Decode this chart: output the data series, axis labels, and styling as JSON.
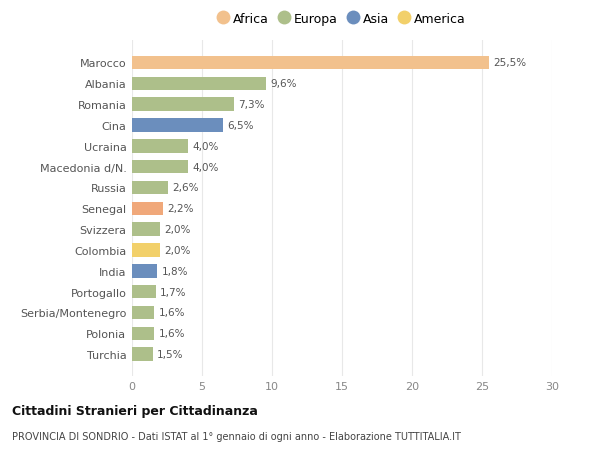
{
  "countries": [
    "Marocco",
    "Albania",
    "Romania",
    "Cina",
    "Ucraina",
    "Macedonia d/N.",
    "Russia",
    "Senegal",
    "Svizzera",
    "Colombia",
    "India",
    "Portogallo",
    "Serbia/Montenegro",
    "Polonia",
    "Turchia"
  ],
  "values": [
    25.5,
    9.6,
    7.3,
    6.5,
    4.0,
    4.0,
    2.6,
    2.2,
    2.0,
    2.0,
    1.8,
    1.7,
    1.6,
    1.6,
    1.5
  ],
  "labels": [
    "25,5%",
    "9,6%",
    "7,3%",
    "6,5%",
    "4,0%",
    "4,0%",
    "2,6%",
    "2,2%",
    "2,0%",
    "2,0%",
    "1,8%",
    "1,7%",
    "1,6%",
    "1,6%",
    "1,5%"
  ],
  "colors": [
    "#F2C18D",
    "#ADBF8A",
    "#ADBF8A",
    "#6B8EBD",
    "#ADBF8A",
    "#ADBF8A",
    "#ADBF8A",
    "#F0A87A",
    "#ADBF8A",
    "#F2D06A",
    "#6B8EBD",
    "#ADBF8A",
    "#ADBF8A",
    "#ADBF8A",
    "#ADBF8A"
  ],
  "legend": [
    {
      "label": "Africa",
      "color": "#F2C18D"
    },
    {
      "label": "Europa",
      "color": "#ADBF8A"
    },
    {
      "label": "Asia",
      "color": "#6B8EBD"
    },
    {
      "label": "America",
      "color": "#F2D06A"
    }
  ],
  "xlim": [
    0,
    30
  ],
  "xticks": [
    0,
    5,
    10,
    15,
    20,
    25,
    30
  ],
  "title": "Cittadini Stranieri per Cittadinanza",
  "subtitle": "PROVINCIA DI SONDRIO - Dati ISTAT al 1° gennaio di ogni anno - Elaborazione TUTTITALIA.IT",
  "background_color": "#ffffff",
  "grid_color": "#e8e8e8"
}
